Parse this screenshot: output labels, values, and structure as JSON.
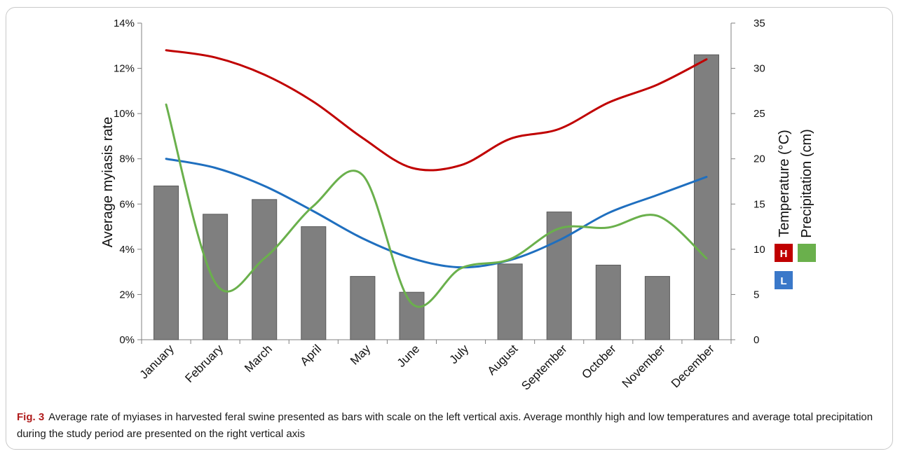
{
  "chart_data": {
    "type": "bar",
    "categories": [
      "January",
      "February",
      "March",
      "April",
      "May",
      "June",
      "July",
      "August",
      "September",
      "October",
      "November",
      "December"
    ],
    "ylabel": "Average myiasis rate",
    "y2label_temperature": "Temperature (°C)",
    "y2label_precipitation": "Precipitation (cm)",
    "ylim": [
      0,
      14
    ],
    "y2lim": [
      0,
      35
    ],
    "yticks": [
      "0%",
      "2%",
      "4%",
      "6%",
      "8%",
      "10%",
      "12%",
      "14%"
    ],
    "y2ticks": [
      "0",
      "5",
      "10",
      "15",
      "20",
      "25",
      "30",
      "35"
    ],
    "grid": false,
    "legend": {
      "high_marker": "H",
      "low_marker": "L",
      "placement": "right"
    },
    "series": [
      {
        "kind": "bar",
        "axis": "left",
        "color": "#7f7f7f",
        "values": [
          6.8,
          5.55,
          6.2,
          5.0,
          2.8,
          2.1,
          0,
          3.35,
          5.65,
          3.3,
          2.8,
          12.6
        ]
      },
      {
        "kind": "line",
        "axis": "right",
        "role": "high",
        "color": "#c00000",
        "values": [
          32.0,
          31.2,
          29.3,
          26.3,
          22.3,
          19.0,
          19.3,
          22.2,
          23.3,
          26.2,
          28.2,
          31.0
        ]
      },
      {
        "kind": "line",
        "axis": "right",
        "role": "low",
        "color": "#1f6fbf",
        "values": [
          20.0,
          19.0,
          17.0,
          14.2,
          11.2,
          9.0,
          8.0,
          8.8,
          11.0,
          14.0,
          16.0,
          18.0
        ]
      },
      {
        "kind": "line",
        "axis": "right",
        "role": "precipitation",
        "color": "#6ab04c",
        "values": [
          26.0,
          6.3,
          9.0,
          14.8,
          18.2,
          4.0,
          7.9,
          8.9,
          12.3,
          12.4,
          13.7,
          9.0
        ]
      }
    ]
  },
  "caption": {
    "label": "Fig. 3",
    "text": "Average rate of myiases in harvested feral swine presented as bars with scale on the left vertical axis. Average monthly high and low temperatures and average total precipitation during the study period are presented on the right vertical axis"
  }
}
